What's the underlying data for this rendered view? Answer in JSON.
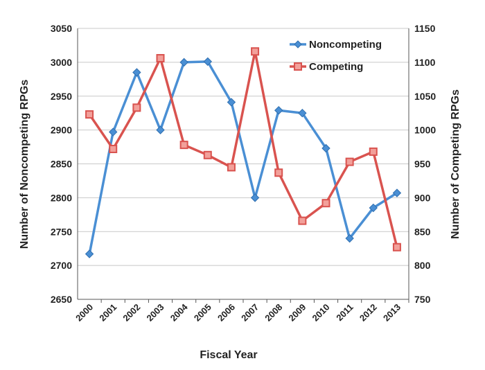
{
  "chart_data": {
    "type": "line",
    "title": "",
    "xlabel": "Fiscal Year",
    "ylabel_left": "Number of Noncompeting RPGs",
    "ylabel_right": "Number of  Competing RPGs",
    "categories": [
      "2000",
      "2001",
      "2002",
      "2003",
      "2004",
      "2005",
      "2006",
      "2007",
      "2008",
      "2009",
      "2010",
      "2011",
      "2012",
      "2013"
    ],
    "ylim_left": [
      2650,
      3050
    ],
    "yticks_left": [
      2650,
      2700,
      2750,
      2800,
      2850,
      2900,
      2950,
      3000,
      3050
    ],
    "ylim_right": [
      750,
      1150
    ],
    "yticks_right": [
      750,
      800,
      850,
      900,
      950,
      1000,
      1050,
      1100,
      1150
    ],
    "grid": "horizontal",
    "legend_position": "top-right",
    "series": [
      {
        "name": "Noncompeting",
        "axis": "left",
        "color": "#4a8fd4",
        "marker": "diamond",
        "values": [
          2717,
          2897,
          2985,
          2900,
          3000,
          3001,
          2941,
          2800,
          2929,
          2925,
          2873,
          2740,
          2785,
          2807
        ]
      },
      {
        "name": "Competing",
        "axis": "right",
        "color": "#d9534f",
        "marker": "square",
        "values": [
          1023,
          972,
          1033,
          1106,
          978,
          963,
          945,
          1116,
          937,
          866,
          892,
          953,
          968,
          827
        ]
      }
    ]
  }
}
